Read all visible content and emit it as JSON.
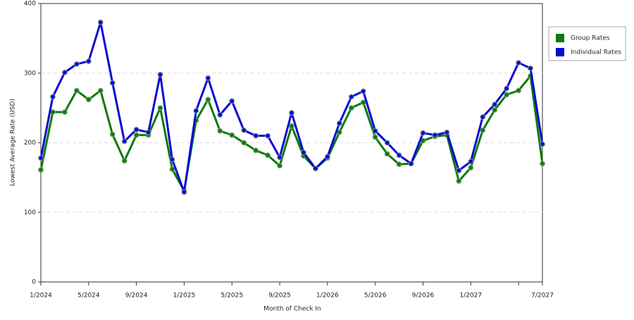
{
  "chart_data": {
    "type": "line",
    "x_label": "Month of Check In",
    "y_label": "Lowest Average Rate (USD)",
    "categories": [
      "1/2024",
      null,
      null,
      null,
      "5/2024",
      null,
      null,
      null,
      "9/2024",
      null,
      null,
      null,
      "1/2025",
      null,
      null,
      null,
      "5/2025",
      null,
      null,
      null,
      "9/2025",
      null,
      null,
      null,
      "1/2026",
      null,
      null,
      null,
      "5/2026",
      null,
      null,
      null,
      "9/2026",
      null,
      null,
      null,
      "1/2027",
      null,
      null,
      null,
      null,
      null,
      "7/2027"
    ],
    "series": [
      {
        "name": "Group Rates",
        "color": "#0a7a0a",
        "values": [
          161,
          244,
          244,
          275,
          262,
          275,
          212,
          174,
          211,
          211,
          250,
          162,
          131,
          232,
          262,
          217,
          211,
          200,
          189,
          182,
          167,
          224,
          181,
          163,
          178,
          215,
          250,
          258,
          208,
          184,
          169,
          170,
          203,
          209,
          211,
          145,
          164,
          218,
          247,
          269,
          275,
          296,
          170
        ]
      },
      {
        "name": "Individual Rates",
        "color": "#0a0ad2",
        "values": [
          178,
          266,
          301,
          313,
          317,
          373,
          286,
          202,
          219,
          215,
          298,
          176,
          129,
          246,
          293,
          240,
          260,
          218,
          210,
          210,
          179,
          243,
          186,
          163,
          180,
          228,
          266,
          274,
          217,
          200,
          182,
          170,
          214,
          211,
          215,
          160,
          173,
          237,
          255,
          278,
          315,
          307,
          198
        ]
      }
    ],
    "ylim": [
      0,
      400
    ],
    "yticks": [
      0,
      100,
      200,
      300,
      400
    ],
    "grid": true,
    "legend": "right"
  }
}
